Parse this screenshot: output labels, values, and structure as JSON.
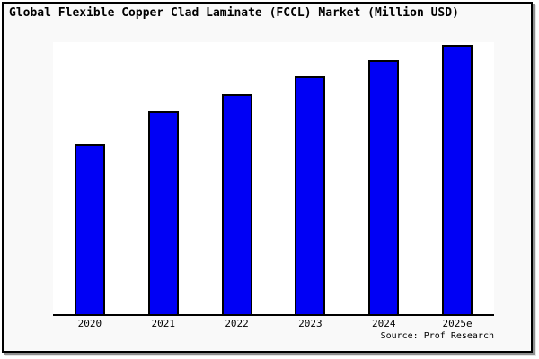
{
  "title": "Global Flexible Copper Clad Laminate (FCCL) Market (Million USD)",
  "source": {
    "text": "Source: Prof Research"
  },
  "colors": {
    "bar_fill": "#0000f5",
    "bar_border": "#000000",
    "axis_line": "#000000",
    "figure_bg": "#f9f9f9",
    "plot_bg": "#ffffff",
    "frame_border": "#000000"
  },
  "chart_data": {
    "type": "bar",
    "title": "Global Flexible Copper Clad Laminate (FCCL) Market (Million USD)",
    "categories": [
      "2020",
      "2021",
      "2022",
      "2023",
      "2024",
      "2025e"
    ],
    "values": [
      63,
      75.3,
      81.8,
      88.2,
      94.2,
      100
    ],
    "value_note": "No numeric axis or data labels are shown; values estimated from bar heights as percent of the tallest (2025e) bar",
    "xlabel": "",
    "ylabel": "",
    "ylim": [
      0,
      100
    ],
    "grid": false,
    "legend": "none",
    "bar_color": "#0000f5",
    "bar_border_color": "#000000"
  }
}
